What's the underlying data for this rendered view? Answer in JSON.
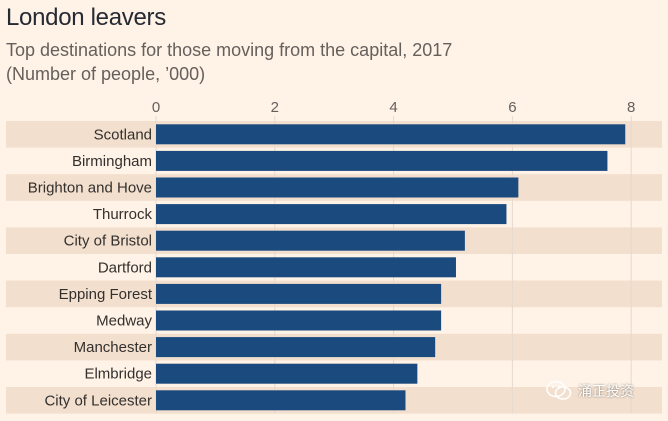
{
  "header": {
    "title": "London leavers",
    "subtitle_line1": "Top destinations for those moving from the capital, 2017",
    "subtitle_line2": "(Number of people, ’000)"
  },
  "watermark": {
    "text": "涌正投资"
  },
  "colors": {
    "bar": "#1b4a7f",
    "band": "#f2dfce",
    "background": "#fff2e6",
    "grid": "#e6d9ce"
  },
  "chart_data": {
    "type": "bar",
    "orientation": "horizontal",
    "categories": [
      "Scotland",
      "Birmingham",
      "Brighton and Hove",
      "Thurrock",
      "City of Bristol",
      "Dartford",
      "Epping Forest",
      "Medway",
      "Manchester",
      "Elmbridge",
      "City of Leicester"
    ],
    "values": [
      7.9,
      7.6,
      6.1,
      5.9,
      5.2,
      5.05,
      4.8,
      4.8,
      4.7,
      4.4,
      4.2
    ],
    "xlim": [
      0,
      8.6
    ],
    "xticks": [
      0,
      2,
      4,
      6,
      8
    ],
    "xtick_labels": [
      "0",
      "2",
      "4",
      "6",
      "8"
    ],
    "grid": true,
    "tick_position": "top"
  }
}
